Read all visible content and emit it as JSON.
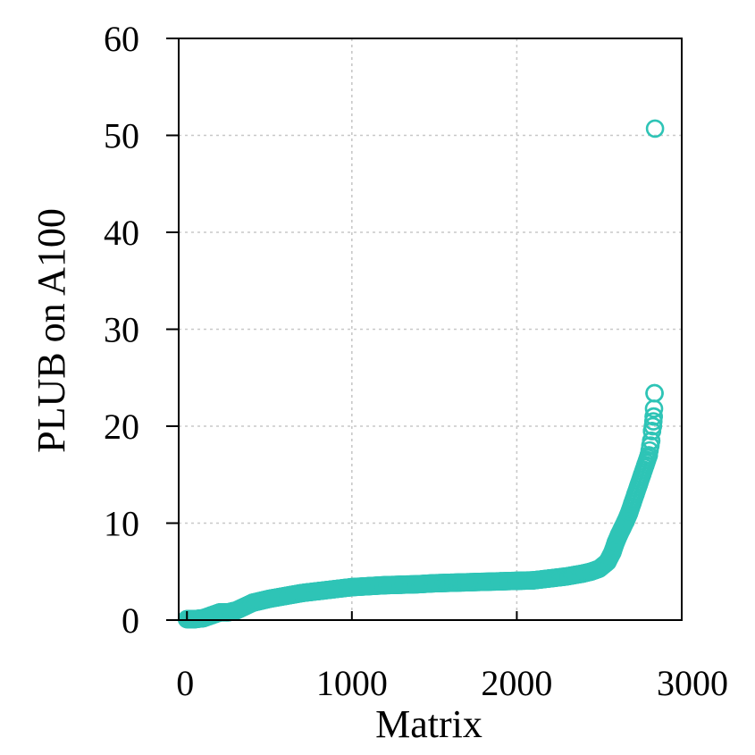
{
  "chart_data": {
    "type": "scatter",
    "title": "",
    "xlabel": "Matrix",
    "ylabel": "PLUB on A100",
    "xlim": [
      -50,
      3000
    ],
    "ylim": [
      0,
      60
    ],
    "xticks": [
      0,
      1000,
      2000,
      3000
    ],
    "yticks": [
      0,
      10,
      20,
      30,
      40,
      50,
      60
    ],
    "grid": true,
    "marker": "open-circle",
    "color": "#2ec4b6",
    "series": [
      {
        "x": [
          0,
          50,
          100,
          150,
          200,
          250,
          300,
          350,
          400,
          450,
          500,
          600,
          700,
          800,
          900,
          1000,
          1100,
          1200,
          1300,
          1400,
          1500,
          1600,
          1700,
          1800,
          1900,
          2000,
          2100,
          2200,
          2300,
          2400,
          2450,
          2500,
          2550,
          2580,
          2600,
          2620,
          2640,
          2660,
          2680,
          2700,
          2720,
          2740,
          2760,
          2780,
          2800,
          2810,
          2815,
          2820,
          2825,
          2828,
          2830,
          2832,
          2835,
          2838
        ],
        "values": [
          0.1,
          0.1,
          0.2,
          0.5,
          0.8,
          0.8,
          1.0,
          1.4,
          1.8,
          2.0,
          2.2,
          2.5,
          2.8,
          3.0,
          3.2,
          3.4,
          3.5,
          3.6,
          3.65,
          3.7,
          3.8,
          3.85,
          3.9,
          3.95,
          4.0,
          4.05,
          4.1,
          4.3,
          4.5,
          4.8,
          5.0,
          5.3,
          6.0,
          7.0,
          8.0,
          8.8,
          9.5,
          10.2,
          11.0,
          12.0,
          13.0,
          14.0,
          15.0,
          16.0,
          17.0,
          18.0,
          18.5,
          19.5,
          20.0,
          20.5,
          21.0,
          21.8,
          23.4,
          50.7
        ]
      }
    ]
  }
}
